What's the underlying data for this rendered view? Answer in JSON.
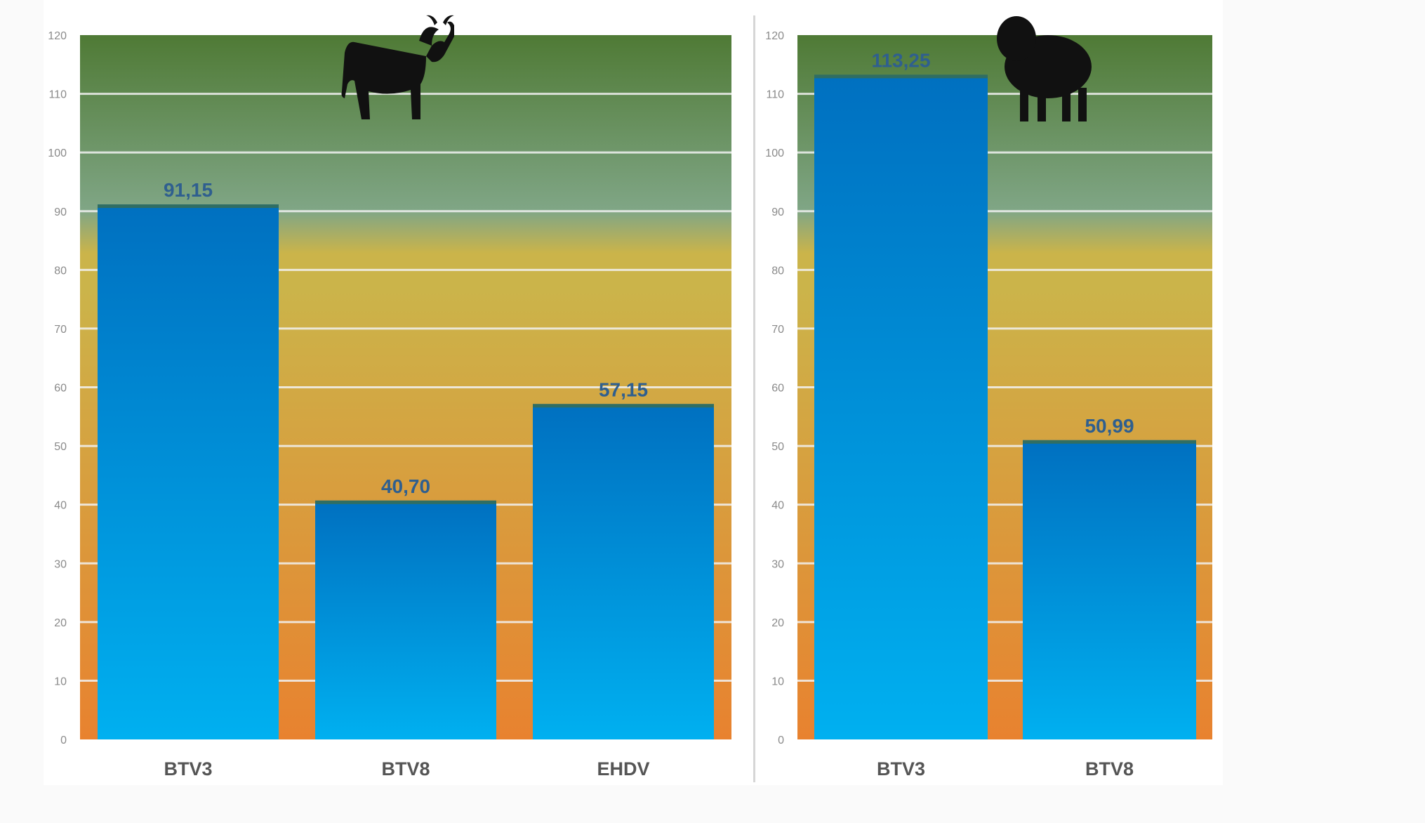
{
  "colors": {
    "band_top": "#4f7a35",
    "band_mid_green": "#80a686",
    "band_yellow": "#cbb44a",
    "band_orange": "#e8822f",
    "bar_top": "#0070c0",
    "bar_bottom": "#00b0f0",
    "gridline": "#f2f2f2",
    "value_label": "#2f5f8f",
    "category_label": "#555555"
  },
  "icons": [
    "cow-icon",
    "sheep-icon"
  ],
  "chart_data": [
    {
      "type": "bar",
      "icon": "cow-icon",
      "categories": [
        "BTV3",
        "BTV8",
        "EHDV"
      ],
      "values": [
        91.15,
        40.7,
        57.15
      ],
      "value_labels": [
        "91,15",
        "40,70",
        "57,15"
      ],
      "ylim": [
        0,
        120
      ],
      "yticks": [
        0,
        10,
        20,
        30,
        40,
        50,
        60,
        70,
        80,
        90,
        100,
        110,
        120
      ],
      "grid": true,
      "background": "color bands: green (top) to yellow to orange (bottom)"
    },
    {
      "type": "bar",
      "icon": "sheep-icon",
      "categories": [
        "BTV3",
        "BTV8"
      ],
      "values": [
        113.25,
        50.99
      ],
      "value_labels": [
        "113,25",
        "50,99"
      ],
      "ylim": [
        0,
        120
      ],
      "yticks": [
        0,
        10,
        20,
        30,
        40,
        50,
        60,
        70,
        80,
        90,
        100,
        110,
        120
      ],
      "grid": true,
      "background": "color bands: green (top) to yellow to orange (bottom)"
    }
  ]
}
